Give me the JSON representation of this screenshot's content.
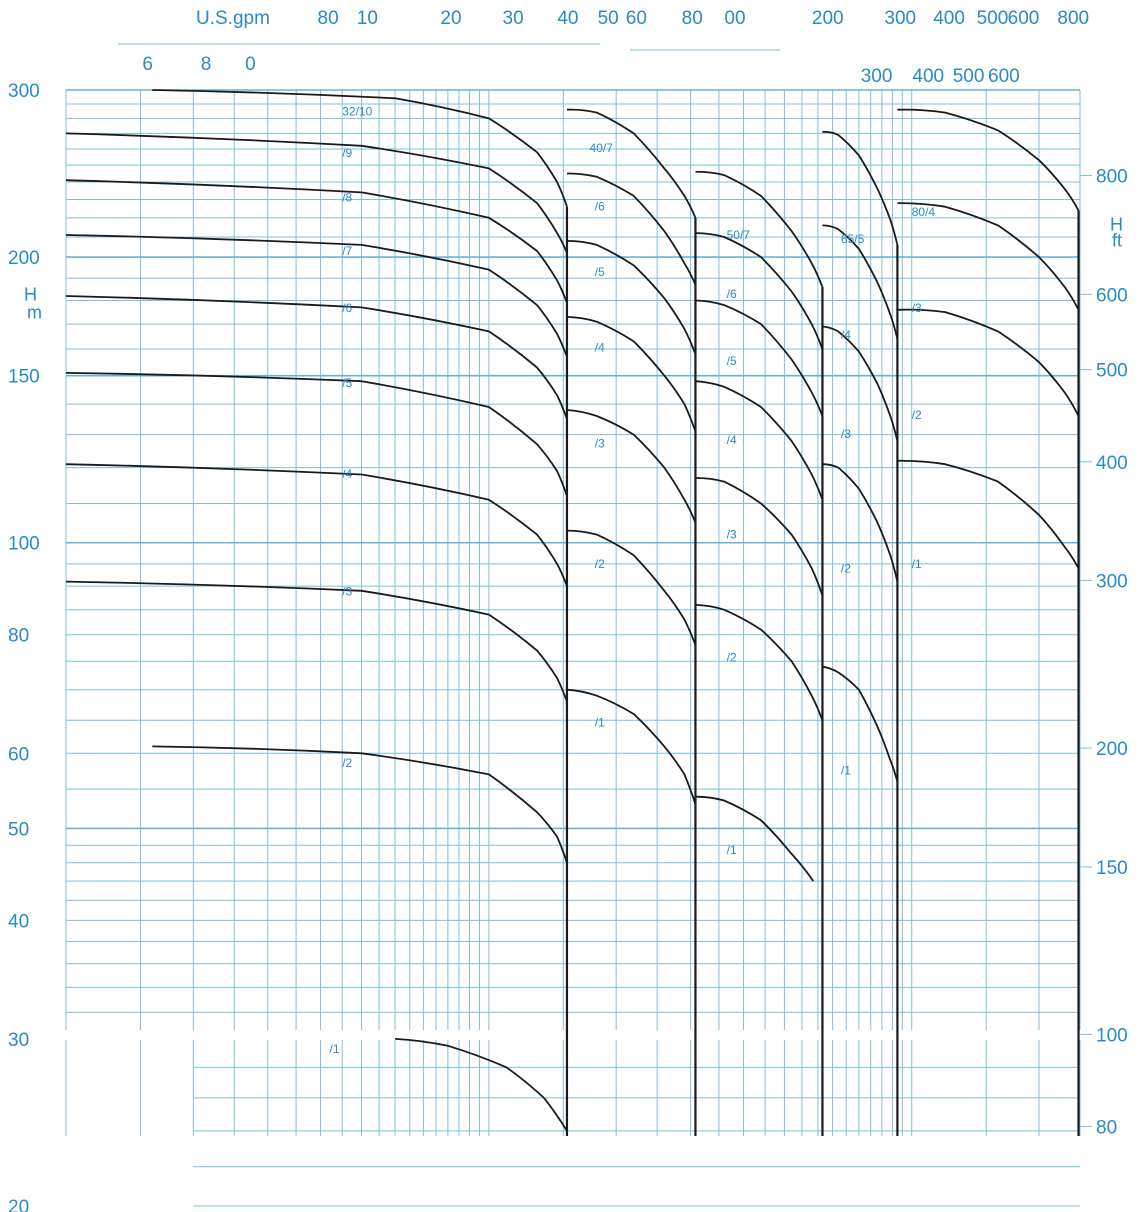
{
  "chart_data": {
    "type": "line",
    "title": "",
    "x_axis_top": {
      "label": "U.S.gpm",
      "ticks": [
        {
          "x": 4.2,
          "label": "80"
        },
        {
          "x": 5.2,
          "label": "10"
        },
        {
          "x": 8.2,
          "label": "20"
        },
        {
          "x": 11.5,
          "label": "30"
        },
        {
          "x": 15.5,
          "label": "40"
        },
        {
          "x": 19.3,
          "label": "50"
        },
        {
          "x": 22.5,
          "label": "60"
        },
        {
          "x": 30.5,
          "label": "80"
        },
        {
          "x": 38.5,
          "label": "00"
        },
        {
          "x": 62,
          "label": "200"
        },
        {
          "x": 92,
          "label": "300"
        },
        {
          "x": 120,
          "label": "400"
        },
        {
          "x": 152,
          "label": "500"
        },
        {
          "x": 180,
          "label": "600"
        },
        {
          "x": 236,
          "label": "800"
        }
      ]
    },
    "x_axis_second": {
      "label": "",
      "ticks": [
        {
          "x": 1.6,
          "label": "6"
        },
        {
          "x": 2.2,
          "label": "8"
        },
        {
          "x": 2.8,
          "label": "0"
        },
        {
          "x": 80,
          "label": "300"
        },
        {
          "x": 106,
          "label": "400"
        },
        {
          "x": 132,
          "label": "500"
        },
        {
          "x": 160,
          "label": "600"
        }
      ]
    },
    "y_axis_left": {
      "label": "H",
      "unit": "m",
      "scale": "log",
      "range": [
        20,
        300
      ],
      "ticks": [
        300,
        200,
        150,
        100,
        80,
        60,
        50,
        40,
        30,
        20
      ]
    },
    "y_axis_right": {
      "label": "H",
      "unit": "ft",
      "scale": "log",
      "range": [
        66,
        984
      ],
      "ticks": [
        800,
        600,
        500,
        400,
        300,
        200,
        150,
        100,
        80
      ]
    },
    "grid": true,
    "series": [
      {
        "name": "32/10",
        "label_x": 4.5,
        "label_y": 282,
        "x": [
          1.6,
          6,
          10,
          13,
          14.5,
          15.3
        ],
        "y": [
          300,
          294,
          280,
          258,
          240,
          226
        ]
      },
      {
        "name": "/9",
        "label_x": 4.5,
        "label_y": 255,
        "x": [
          1,
          5,
          10,
          13,
          14.5,
          15.3
        ],
        "y": [
          270,
          262,
          248,
          228,
          212,
          202
        ]
      },
      {
        "name": "/8",
        "label_x": 4.5,
        "label_y": 229,
        "x": [
          1,
          5,
          10,
          13,
          14.5,
          15.3
        ],
        "y": [
          241,
          234,
          220,
          203,
          189,
          179
        ]
      },
      {
        "name": "/7",
        "label_x": 4.5,
        "label_y": 201,
        "x": [
          1,
          5,
          10,
          13,
          14.5,
          15.3
        ],
        "y": [
          211,
          206,
          194,
          178,
          166,
          157
        ]
      },
      {
        "name": "/6",
        "label_x": 4.5,
        "label_y": 175,
        "x": [
          1,
          5,
          10,
          13,
          14.5,
          15.3
        ],
        "y": [
          182,
          177,
          167,
          153,
          143,
          135
        ]
      },
      {
        "name": "/5",
        "label_x": 4.5,
        "label_y": 146,
        "x": [
          1,
          5,
          10,
          13,
          14.5,
          15.3
        ],
        "y": [
          151,
          148,
          139,
          127,
          119,
          112
        ]
      },
      {
        "name": "/4",
        "label_x": 4.5,
        "label_y": 117,
        "x": [
          1,
          5,
          10,
          13,
          14.5,
          15.3
        ],
        "y": [
          121,
          118,
          111,
          102,
          95,
          90
        ]
      },
      {
        "name": "/3",
        "label_x": 4.5,
        "label_y": 88,
        "x": [
          1,
          5,
          10,
          13,
          14.5,
          15.3
        ],
        "y": [
          91,
          89,
          84,
          77,
          72,
          68
        ]
      },
      {
        "name": "/2",
        "label_x": 4.5,
        "label_y": 58,
        "x": [
          1.6,
          5,
          10,
          13,
          14.5,
          15.3
        ],
        "y": [
          61,
          60,
          57,
          52,
          49,
          46
        ]
      },
      {
        "name": "/1",
        "label_x": 4.2,
        "label_y": 29,
        "x": [
          6,
          8,
          11,
          13.5,
          15.3
        ],
        "y": [
          30,
          29.5,
          28,
          26,
          24
        ]
      },
      {
        "name": "40/7",
        "label_x": 17.3,
        "label_y": 258,
        "x": [
          15.3,
          18,
          22,
          26,
          29,
          30.8
        ],
        "y": [
          286,
          284,
          270,
          248,
          232,
          220
        ]
      },
      {
        "name": "/6",
        "label_x": 17.8,
        "label_y": 224,
        "x": [
          15.3,
          18,
          22,
          26,
          29,
          30.8
        ],
        "y": [
          245,
          243,
          232,
          213,
          197,
          187
        ]
      },
      {
        "name": "/5",
        "label_x": 17.8,
        "label_y": 191,
        "x": [
          15.3,
          18,
          22,
          26,
          29,
          30.8
        ],
        "y": [
          208,
          206,
          196,
          181,
          168,
          158
        ]
      },
      {
        "name": "/4",
        "label_x": 17.8,
        "label_y": 159,
        "x": [
          15.3,
          18,
          22,
          26,
          29,
          30.8
        ],
        "y": [
          173,
          171,
          163,
          150,
          140,
          131
        ]
      },
      {
        "name": "/3",
        "label_x": 17.8,
        "label_y": 126,
        "x": [
          15.3,
          18,
          22,
          26,
          29,
          30.8
        ],
        "y": [
          138,
          136,
          130,
          120,
          111,
          105
        ]
      },
      {
        "name": "/2",
        "label_x": 17.8,
        "label_y": 94,
        "x": [
          15.3,
          18,
          22,
          26,
          29,
          30.8
        ],
        "y": [
          103,
          102,
          97,
          89,
          83,
          78
        ]
      },
      {
        "name": "/1",
        "label_x": 17.8,
        "label_y": 64,
        "x": [
          15.3,
          18,
          22,
          26,
          29,
          30.8
        ],
        "y": [
          70,
          69,
          66,
          61,
          57,
          53
        ]
      },
      {
        "name": "50/7",
        "label_x": 36.5,
        "label_y": 209,
        "x": [
          30.8,
          36,
          44,
          52,
          58,
          61.5
        ],
        "y": [
          246,
          244,
          232,
          213,
          197,
          186
        ]
      },
      {
        "name": "/6",
        "label_x": 36.5,
        "label_y": 181,
        "x": [
          30.8,
          36,
          44,
          52,
          58,
          61.5
        ],
        "y": [
          212,
          210,
          200,
          184,
          170,
          160
        ]
      },
      {
        "name": "/5",
        "label_x": 36.5,
        "label_y": 154,
        "x": [
          30.8,
          36,
          44,
          52,
          58,
          61.5
        ],
        "y": [
          180,
          178,
          170,
          156,
          144,
          136
        ]
      },
      {
        "name": "/4",
        "label_x": 36.5,
        "label_y": 127,
        "x": [
          30.8,
          36,
          44,
          52,
          58,
          61.5
        ],
        "y": [
          148,
          146,
          139,
          128,
          118,
          111
        ]
      },
      {
        "name": "/3",
        "label_x": 36.5,
        "label_y": 101,
        "x": [
          30.8,
          36,
          44,
          52,
          58,
          61.5
        ],
        "y": [
          117,
          116,
          110,
          102,
          94,
          88
        ]
      },
      {
        "name": "/2",
        "label_x": 36.5,
        "label_y": 75,
        "x": [
          30.8,
          36,
          44,
          52,
          58,
          61.5
        ],
        "y": [
          86,
          85,
          81,
          75,
          69,
          65
        ]
      },
      {
        "name": "/1",
        "label_x": 36.5,
        "label_y": 47,
        "x": [
          30.8,
          36,
          44,
          52,
          58.5
        ],
        "y": [
          54,
          53.5,
          51,
          47,
          44
        ]
      },
      {
        "name": "65/5",
        "label_x": 68,
        "label_y": 207,
        "x": [
          61.5,
          67,
          75,
          83,
          89,
          92.5
        ],
        "y": [
          271,
          269,
          256,
          236,
          219,
          206
        ]
      },
      {
        "name": "/4",
        "label_x": 68,
        "label_y": 164,
        "x": [
          61.5,
          67,
          75,
          83,
          89,
          92.5
        ],
        "y": [
          216,
          214,
          204,
          188,
          174,
          164
        ]
      },
      {
        "name": "/3",
        "label_x": 68,
        "label_y": 129,
        "x": [
          61.5,
          67,
          75,
          83,
          89,
          92.5
        ],
        "y": [
          169,
          167,
          159,
          147,
          136,
          128
        ]
      },
      {
        "name": "/2",
        "label_x": 68,
        "label_y": 93,
        "x": [
          61.5,
          67,
          75,
          83,
          89,
          92.5
        ],
        "y": [
          121,
          120,
          114,
          105,
          97,
          91
        ]
      },
      {
        "name": "/1",
        "label_x": 68,
        "label_y": 57,
        "x": [
          61.5,
          67,
          75,
          83,
          89,
          92.5
        ],
        "y": [
          74,
          73,
          70,
          64,
          59,
          56
        ]
      },
      {
        "name": "80/4",
        "label_x": 100,
        "label_y": 221,
        "x": [
          92.5,
          120,
          160,
          200,
          230,
          248
        ],
        "y": [
          286,
          284,
          272,
          253,
          236,
          224
        ]
      },
      {
        "name": "/3",
        "label_x": 100,
        "label_y": 175,
        "x": [
          92.5,
          120,
          160,
          200,
          230,
          248
        ],
        "y": [
          228,
          226,
          216,
          200,
          186,
          176
        ]
      },
      {
        "name": "/2",
        "label_x": 100,
        "label_y": 135,
        "x": [
          92.5,
          120,
          160,
          200,
          230,
          248
        ],
        "y": [
          176,
          175,
          167,
          155,
          144,
          136
        ]
      },
      {
        "name": "/1",
        "label_x": 100,
        "label_y": 94,
        "x": [
          92.5,
          120,
          160,
          200,
          230,
          248
        ],
        "y": [
          122,
          121,
          116,
          107,
          99,
          94
        ]
      }
    ]
  }
}
